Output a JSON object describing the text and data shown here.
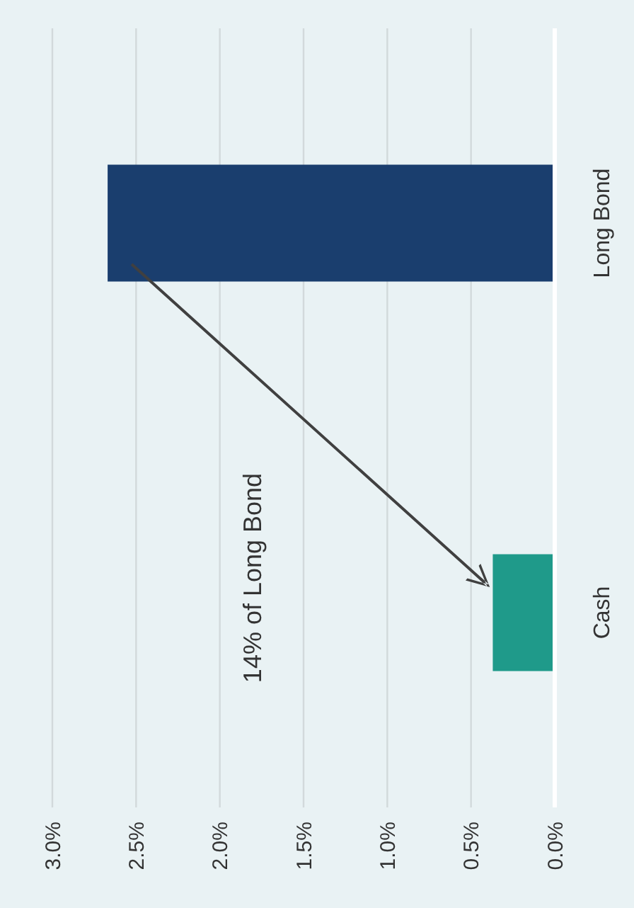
{
  "chart_data": {
    "type": "bar",
    "orientation": "horizontal",
    "categories": [
      "Long Bond",
      "Cash"
    ],
    "values": [
      2.67,
      0.37
    ],
    "colors": [
      "#1a3e6e",
      "#1f9a8a"
    ],
    "xlim": [
      3.0,
      0
    ],
    "xticks": [
      {
        "value": 3,
        "label": "3.0%"
      },
      {
        "value": 2.5,
        "label": "2.5%"
      },
      {
        "value": 2,
        "label": "2.0%"
      },
      {
        "value": 1.5,
        "label": "1.5%"
      },
      {
        "value": 1,
        "label": "1.0%"
      },
      {
        "value": 0.5,
        "label": "0.5%"
      },
      {
        "value": 0,
        "label": "0.0%"
      }
    ],
    "grid": "x",
    "annotations": [
      "14% of Long Bond"
    ]
  }
}
